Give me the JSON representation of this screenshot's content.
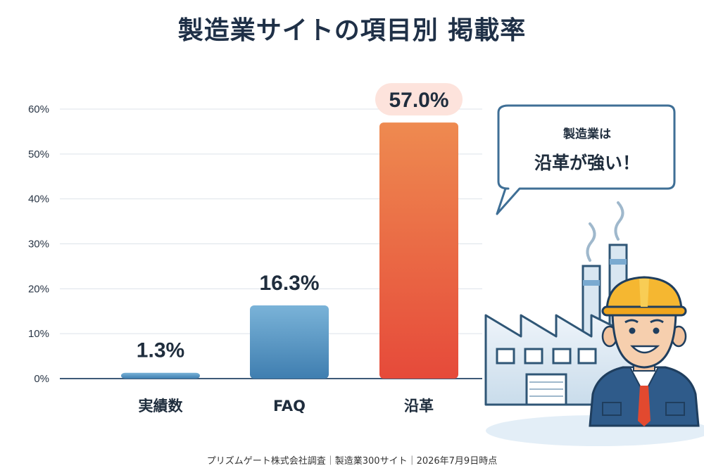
{
  "chart_data": {
    "type": "bar",
    "title": "製造業サイトの項目別 掲載率",
    "categories": [
      "実績数",
      "FAQ",
      "沿革"
    ],
    "values": [
      1.3,
      16.3,
      57.0
    ],
    "data_labels": [
      "1.3%",
      "16.3%",
      "57.0%"
    ],
    "yticks": [
      "0%",
      "10%",
      "20%",
      "30%",
      "40%",
      "50%",
      "60%"
    ],
    "ylim": [
      0,
      60
    ],
    "grid": true,
    "highlight_category": "沿革",
    "colors": {
      "normal_top": "#7ab3d8",
      "normal_bottom": "#3f7eb0",
      "highlight_top": "#ee8a50",
      "highlight_bottom": "#e64a3a",
      "highlight_label_bg": "#fde3dc"
    }
  },
  "callout": {
    "line1": "製造業は",
    "line2": "沿革が強い！"
  },
  "footer": "プリズムゲート株式会社調査｜製造業300サイト｜2026年7月9日時点",
  "illustration": {
    "subject": "factory-with-worker",
    "icons": [
      "factory-icon",
      "worker-icon",
      "speech-bubble-icon"
    ]
  }
}
